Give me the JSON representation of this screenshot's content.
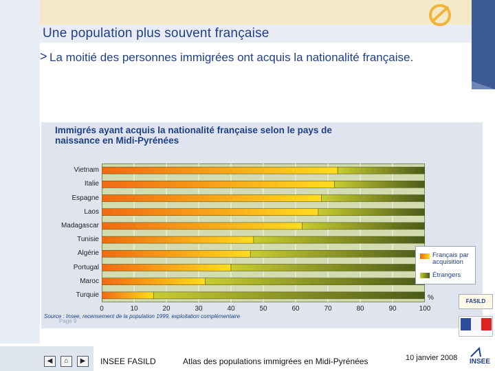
{
  "slide": {
    "title": "Une population plus souvent française",
    "bullet_arrow": ">",
    "bullet_text": "La moitié des personnes immigrées ont acquis la nationalité française."
  },
  "chart_data": {
    "type": "bar",
    "orientation": "horizontal",
    "stacked": true,
    "title": "Immigrés ayant acquis la nationalité française selon le pays de naissance en Midi-Pyrénées",
    "categories": [
      "Vietnam",
      "Italie",
      "Espagne",
      "Laos",
      "Madagascar",
      "Tunisie",
      "Algérie",
      "Portugal",
      "Maroc",
      "Turquie"
    ],
    "series": [
      {
        "name": "Français par acquisition",
        "color": "#f08a1c",
        "values": [
          73,
          72,
          68,
          67,
          62,
          47,
          46,
          40,
          32,
          16
        ]
      },
      {
        "name": "Étrangers",
        "color": "#7f8a2a",
        "values": [
          27,
          28,
          32,
          33,
          38,
          53,
          54,
          60,
          68,
          84
        ]
      }
    ],
    "xlim": [
      0,
      100
    ],
    "xticks": [
      "0",
      "10",
      "20",
      "30",
      "40",
      "50",
      "60",
      "70",
      "80",
      "90",
      "100"
    ],
    "xunit": "%",
    "legend": [
      "Français par acquisition",
      "Étrangers"
    ],
    "legend_position": "right",
    "source": "Source : Insee, recensement de la population 1999, exploitation complémentaire"
  },
  "page_label": "Page 9",
  "footer": {
    "org": "INSEE FASILD",
    "subject": "Atlas des populations immigrées en Midi-Pyrénées",
    "date": "10 janvier 2008"
  },
  "nav": {
    "prev": "◀",
    "home": "⌂",
    "next": "▶"
  },
  "logos": {
    "fasild": "FASILD",
    "insee": "INSEE"
  }
}
